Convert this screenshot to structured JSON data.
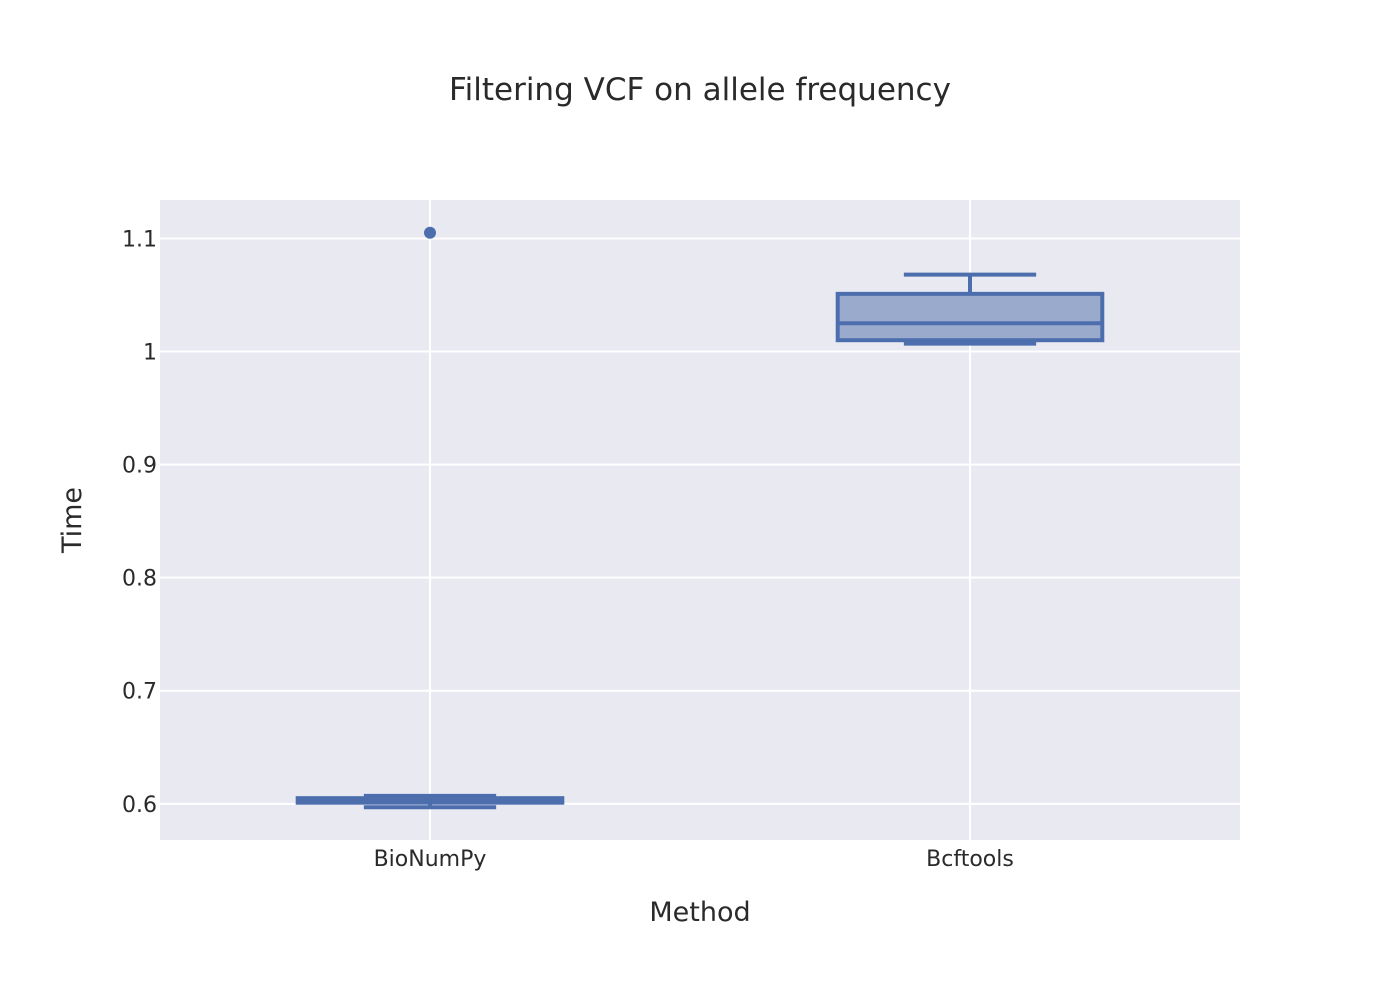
{
  "chart_data": {
    "type": "box",
    "title": "Filtering VCF on allele frequency",
    "xlabel": "Method",
    "ylabel": "Time",
    "categories": [
      "BioNumPy",
      "Bcftools"
    ],
    "boxes": [
      {
        "category": "BioNumPy",
        "min": 0.597,
        "q1": 0.601,
        "median": 0.603,
        "q3": 0.605,
        "max": 0.607,
        "outliers": [
          1.105
        ]
      },
      {
        "category": "Bcftools",
        "min": 1.007,
        "q1": 1.01,
        "median": 1.025,
        "q3": 1.051,
        "max": 1.068,
        "outliers": []
      }
    ],
    "ylim": [
      0.568,
      1.134
    ],
    "yticks": [
      0.6,
      0.7,
      0.8,
      0.9,
      1.0,
      1.1
    ],
    "ytick_labels": [
      "0.6",
      "0.7",
      "0.8",
      "0.9",
      "1",
      "1.1"
    ],
    "grid": true,
    "colors": {
      "box_line": "#4c6ead",
      "box_fill": "#9aaacd",
      "plot_background": "#e9e9f2",
      "grid": "#ffffff"
    }
  }
}
